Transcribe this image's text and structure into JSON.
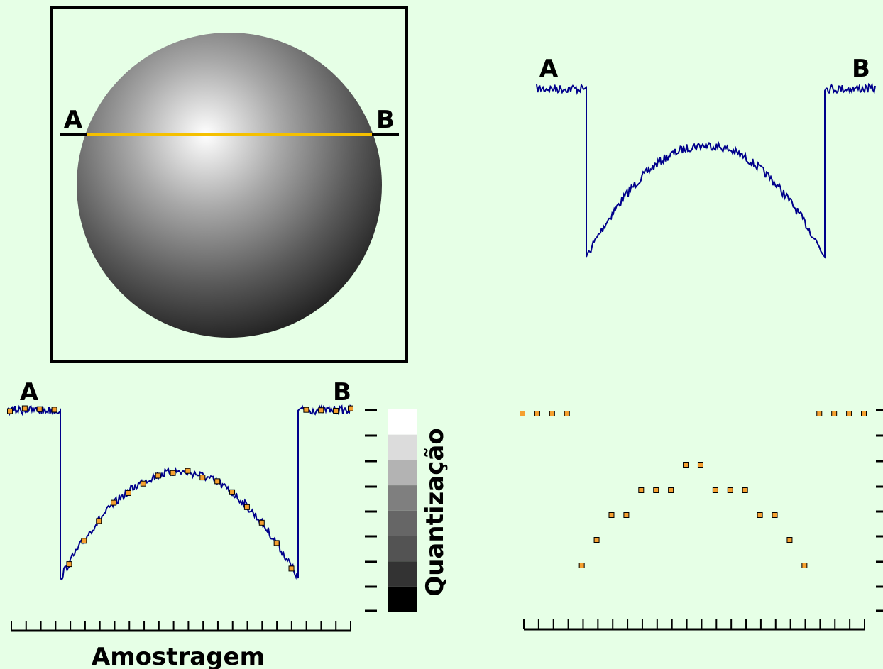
{
  "sphere": {
    "label_a": "A",
    "label_b": "B"
  },
  "profile": {
    "label_a": "A",
    "label_b": "B"
  },
  "sampled": {
    "label_a": "A",
    "label_b": "B",
    "quantization_label": "Quantização",
    "sampling_label": "Amostragem"
  }
}
